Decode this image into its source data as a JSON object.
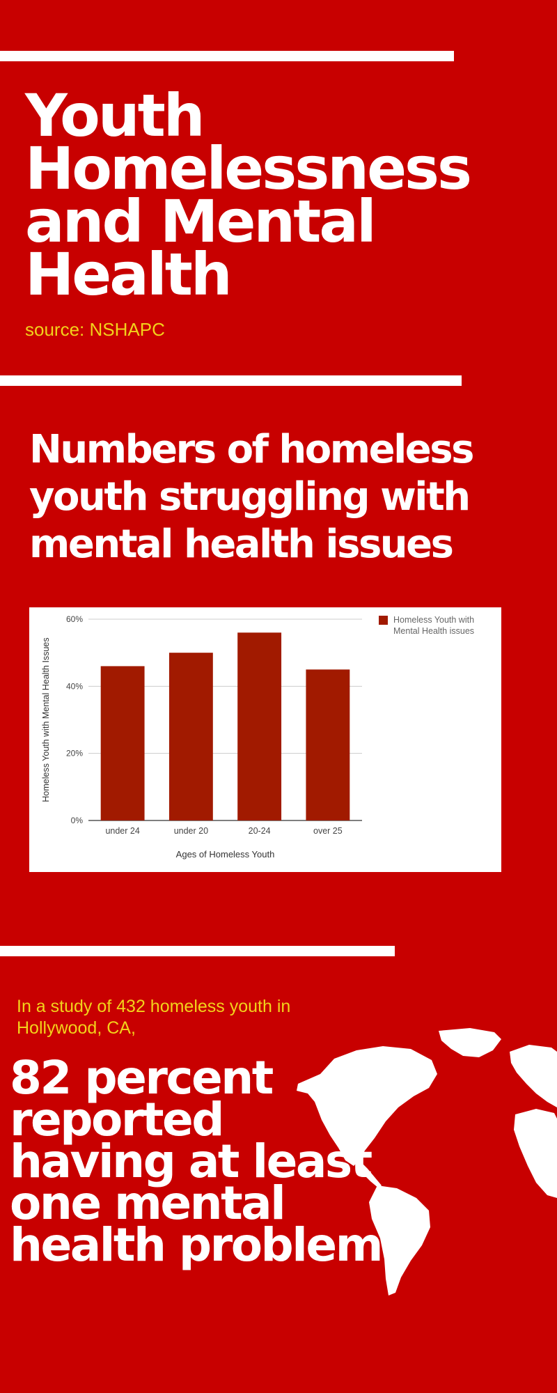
{
  "header": {
    "title": "Youth Homelessness and Mental Health",
    "source": "source: NSHAPC"
  },
  "section_chart": {
    "heading": "Numbers of homeless youth struggling  with mental health issues"
  },
  "chart_data": {
    "type": "bar",
    "title": "",
    "categories": [
      "under 24",
      "under 20",
      "20-24",
      "over 25"
    ],
    "series": [
      {
        "name": "Homeless Youth with Mental Health issues",
        "values": [
          46,
          50,
          56,
          45
        ],
        "color": "#a11a00"
      }
    ],
    "xlabel": "Ages of Homeless Youth",
    "ylabel": "Homeless Youth with Mental Health Issues",
    "ylim": [
      0,
      60
    ],
    "yticks": [
      "0%",
      "20%",
      "40%",
      "60%"
    ],
    "grid": true,
    "legend_position": "top-right"
  },
  "study": {
    "intro": "In a study of 432 homeless youth in Hollywood, CA,",
    "statement": "82 percent reported having at least one mental health problem"
  },
  "colors": {
    "background": "#c80000",
    "accent_text": "#f2d21b",
    "bar": "#a11a00"
  },
  "icons": {
    "map": "world-map-icon"
  }
}
